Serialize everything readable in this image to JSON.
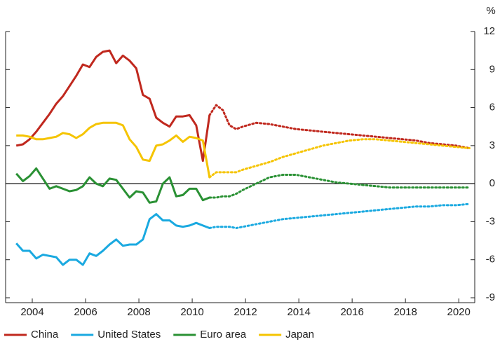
{
  "chart_data": {
    "type": "line",
    "y_unit": "%",
    "x": [
      2003.4,
      2003.65,
      2003.9,
      2004.15,
      2004.4,
      2004.65,
      2004.9,
      2005.15,
      2005.4,
      2005.65,
      2005.9,
      2006.15,
      2006.4,
      2006.65,
      2006.9,
      2007.15,
      2007.4,
      2007.65,
      2007.9,
      2008.15,
      2008.4,
      2008.65,
      2008.9,
      2009.15,
      2009.4,
      2009.65,
      2009.9,
      2010.15,
      2010.4,
      2010.65
    ],
    "projection_x": [
      2010.65,
      2010.9,
      2011.15,
      2011.4,
      2011.65,
      2011.9,
      2012.4,
      2012.9,
      2013.4,
      2013.9,
      2014.4,
      2014.9,
      2015.4,
      2015.9,
      2016.4,
      2016.9,
      2017.4,
      2017.9,
      2018.4,
      2018.9,
      2019.4,
      2019.9,
      2020.4
    ],
    "series": [
      {
        "name": "China",
        "color": "#c0281e",
        "values": [
          3.0,
          3.1,
          3.5,
          4.1,
          4.8,
          5.5,
          6.3,
          6.9,
          7.7,
          8.5,
          9.4,
          9.2,
          10.0,
          10.4,
          10.5,
          9.5,
          10.1,
          9.7,
          9.1,
          7.0,
          6.7,
          5.2,
          4.8,
          4.5,
          5.3,
          5.3,
          5.4,
          4.6,
          1.8,
          5.4
        ],
        "projection_values": [
          5.4,
          6.2,
          5.8,
          4.6,
          4.3,
          4.5,
          4.8,
          4.7,
          4.5,
          4.3,
          4.2,
          4.1,
          4.0,
          3.9,
          3.8,
          3.7,
          3.6,
          3.5,
          3.4,
          3.2,
          3.1,
          3.0,
          2.8
        ]
      },
      {
        "name": "United States",
        "color": "#1aa9e0",
        "values": [
          -4.7,
          -5.3,
          -5.3,
          -5.9,
          -5.6,
          -5.7,
          -5.8,
          -6.4,
          -6.0,
          -6.0,
          -6.4,
          -5.5,
          -5.7,
          -5.3,
          -4.8,
          -4.4,
          -4.9,
          -4.8,
          -4.8,
          -4.4,
          -2.8,
          -2.4,
          -2.9,
          -2.9,
          -3.3,
          -3.4,
          -3.3,
          -3.1,
          -3.3,
          -3.5
        ],
        "projection_values": [
          -3.5,
          -3.4,
          -3.4,
          -3.4,
          -3.5,
          -3.4,
          -3.2,
          -3.0,
          -2.8,
          -2.7,
          -2.6,
          -2.5,
          -2.4,
          -2.3,
          -2.2,
          -2.1,
          -2.0,
          -1.9,
          -1.8,
          -1.8,
          -1.7,
          -1.7,
          -1.6
        ]
      },
      {
        "name": "Euro area",
        "color": "#2a9134",
        "values": [
          0.8,
          0.2,
          0.6,
          1.2,
          0.4,
          -0.4,
          -0.2,
          -0.4,
          -0.6,
          -0.5,
          -0.2,
          0.5,
          0.0,
          -0.2,
          0.4,
          0.3,
          -0.4,
          -1.1,
          -0.6,
          -0.7,
          -1.5,
          -1.4,
          0.0,
          0.5,
          -1.0,
          -0.9,
          -0.4,
          -0.4,
          -1.3,
          -1.1
        ],
        "projection_values": [
          -1.1,
          -1.1,
          -1.0,
          -1.0,
          -0.8,
          -0.5,
          0.0,
          0.5,
          0.7,
          0.7,
          0.5,
          0.3,
          0.1,
          0.0,
          -0.1,
          -0.2,
          -0.3,
          -0.3,
          -0.3,
          -0.3,
          -0.3,
          -0.3,
          -0.3
        ]
      },
      {
        "name": "Japan",
        "color": "#f5c400",
        "values": [
          3.8,
          3.8,
          3.7,
          3.5,
          3.5,
          3.6,
          3.7,
          4.0,
          3.9,
          3.6,
          3.9,
          4.4,
          4.7,
          4.8,
          4.8,
          4.8,
          4.6,
          3.5,
          2.9,
          1.9,
          1.8,
          3.0,
          3.1,
          3.4,
          3.8,
          3.3,
          3.7,
          3.6,
          3.4,
          0.5
        ],
        "projection_values": [
          0.5,
          0.9,
          0.9,
          0.9,
          0.9,
          1.1,
          1.4,
          1.7,
          2.1,
          2.4,
          2.7,
          3.0,
          3.2,
          3.4,
          3.5,
          3.5,
          3.4,
          3.3,
          3.2,
          3.1,
          3.0,
          2.9,
          2.8
        ]
      }
    ],
    "xlim": [
      2003,
      2020.6
    ],
    "xticks": [
      2004,
      2006,
      2008,
      2010,
      2012,
      2014,
      2016,
      2018,
      2020
    ],
    "ylim": [
      -9,
      12
    ],
    "yticks": [
      12,
      9,
      6,
      3,
      0,
      -3,
      -6,
      -9
    ],
    "zero_line": true,
    "legend": "bottom"
  }
}
